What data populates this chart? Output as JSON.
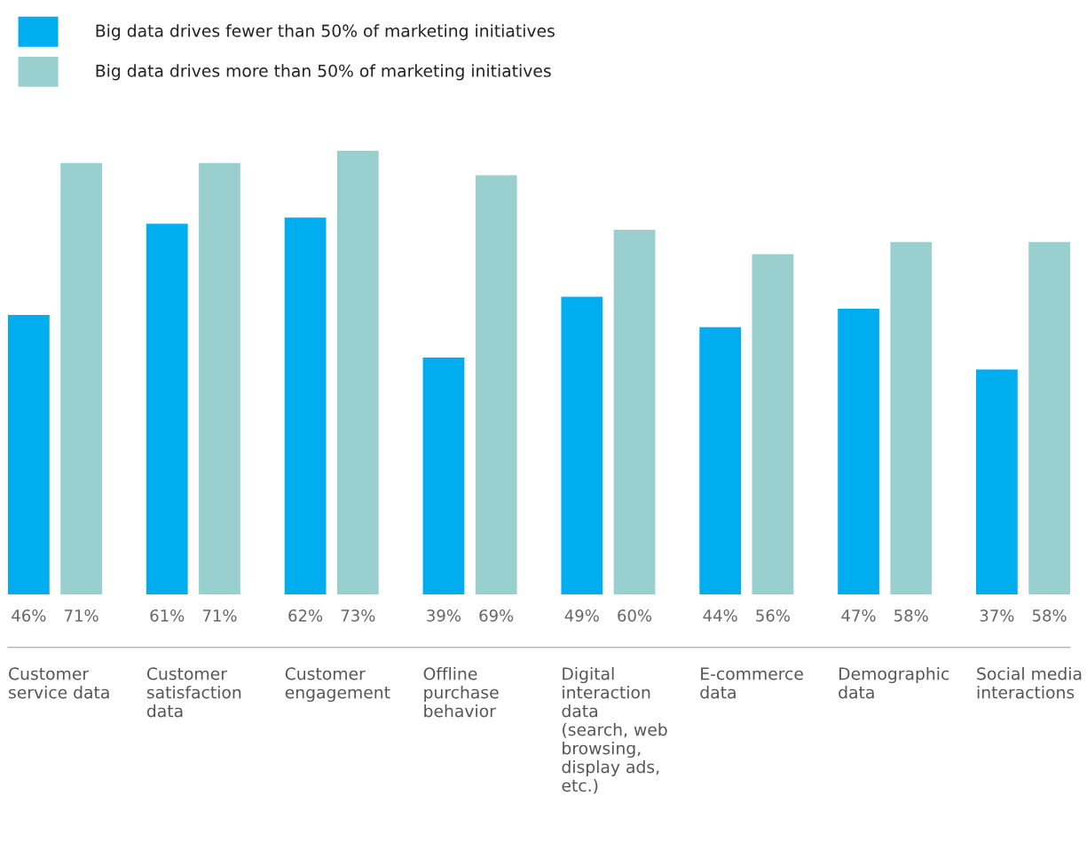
{
  "chart_data": {
    "type": "bar",
    "categories": [
      "Customer\nservice data",
      "Customer\nsatisfaction\ndata",
      "Customer\nengagement",
      "Offline\npurchase\nbehavior",
      "Digital\ninteraction\ndata\n(search, web\nbrowsing,\ndisplay ads,\netc.)",
      "E-commerce\ndata",
      "Demographic\ndata",
      "Social media\ninteractions"
    ],
    "series": [
      {
        "name": "Big data drives fewer than 50% of marketing initiatives",
        "color": "#00adef",
        "values": [
          46,
          61,
          62,
          39,
          49,
          44,
          47,
          37
        ],
        "value_labels": [
          "46%",
          "61%",
          "62%",
          "39%",
          "49%",
          "44%",
          "47%",
          "37%"
        ]
      },
      {
        "name": "Big data drives more than 50% of marketing initiatives",
        "color": "#99cfcf",
        "values": [
          71,
          71,
          73,
          69,
          60,
          56,
          58,
          58
        ],
        "value_labels": [
          "71%",
          "71%",
          "73%",
          "69%",
          "60%",
          "56%",
          "58%",
          "58%"
        ]
      }
    ],
    "legend": "top left",
    "grid": false
  }
}
